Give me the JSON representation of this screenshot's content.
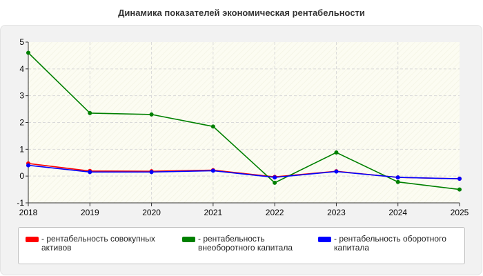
{
  "chart_data": {
    "type": "line",
    "title": "Динамика показателей экономическая рентабельности",
    "x": [
      "2018",
      "2019",
      "2020",
      "2021",
      "2022",
      "2023",
      "2024",
      "2025"
    ],
    "ylim": [
      -1,
      5
    ],
    "yticks": [
      "-1",
      "0",
      "1",
      "2",
      "3",
      "4",
      "5"
    ],
    "grid": true,
    "legend_position": "bottom",
    "series": [
      {
        "name": "- рентабельность совокупных активов",
        "color": "#ff0000",
        "values": [
          0.47,
          0.19,
          0.18,
          0.22,
          -0.03,
          0.18,
          -0.05,
          -0.1
        ]
      },
      {
        "name": "- рентабельность внеоборотного капитала",
        "color": "#008000",
        "values": [
          4.6,
          2.35,
          2.3,
          1.85,
          -0.25,
          0.88,
          -0.22,
          -0.5
        ]
      },
      {
        "name": "- рентабельность оборотного капитала",
        "color": "#0000ff",
        "values": [
          0.4,
          0.15,
          0.15,
          0.2,
          -0.05,
          0.17,
          -0.05,
          -0.1
        ]
      }
    ]
  }
}
